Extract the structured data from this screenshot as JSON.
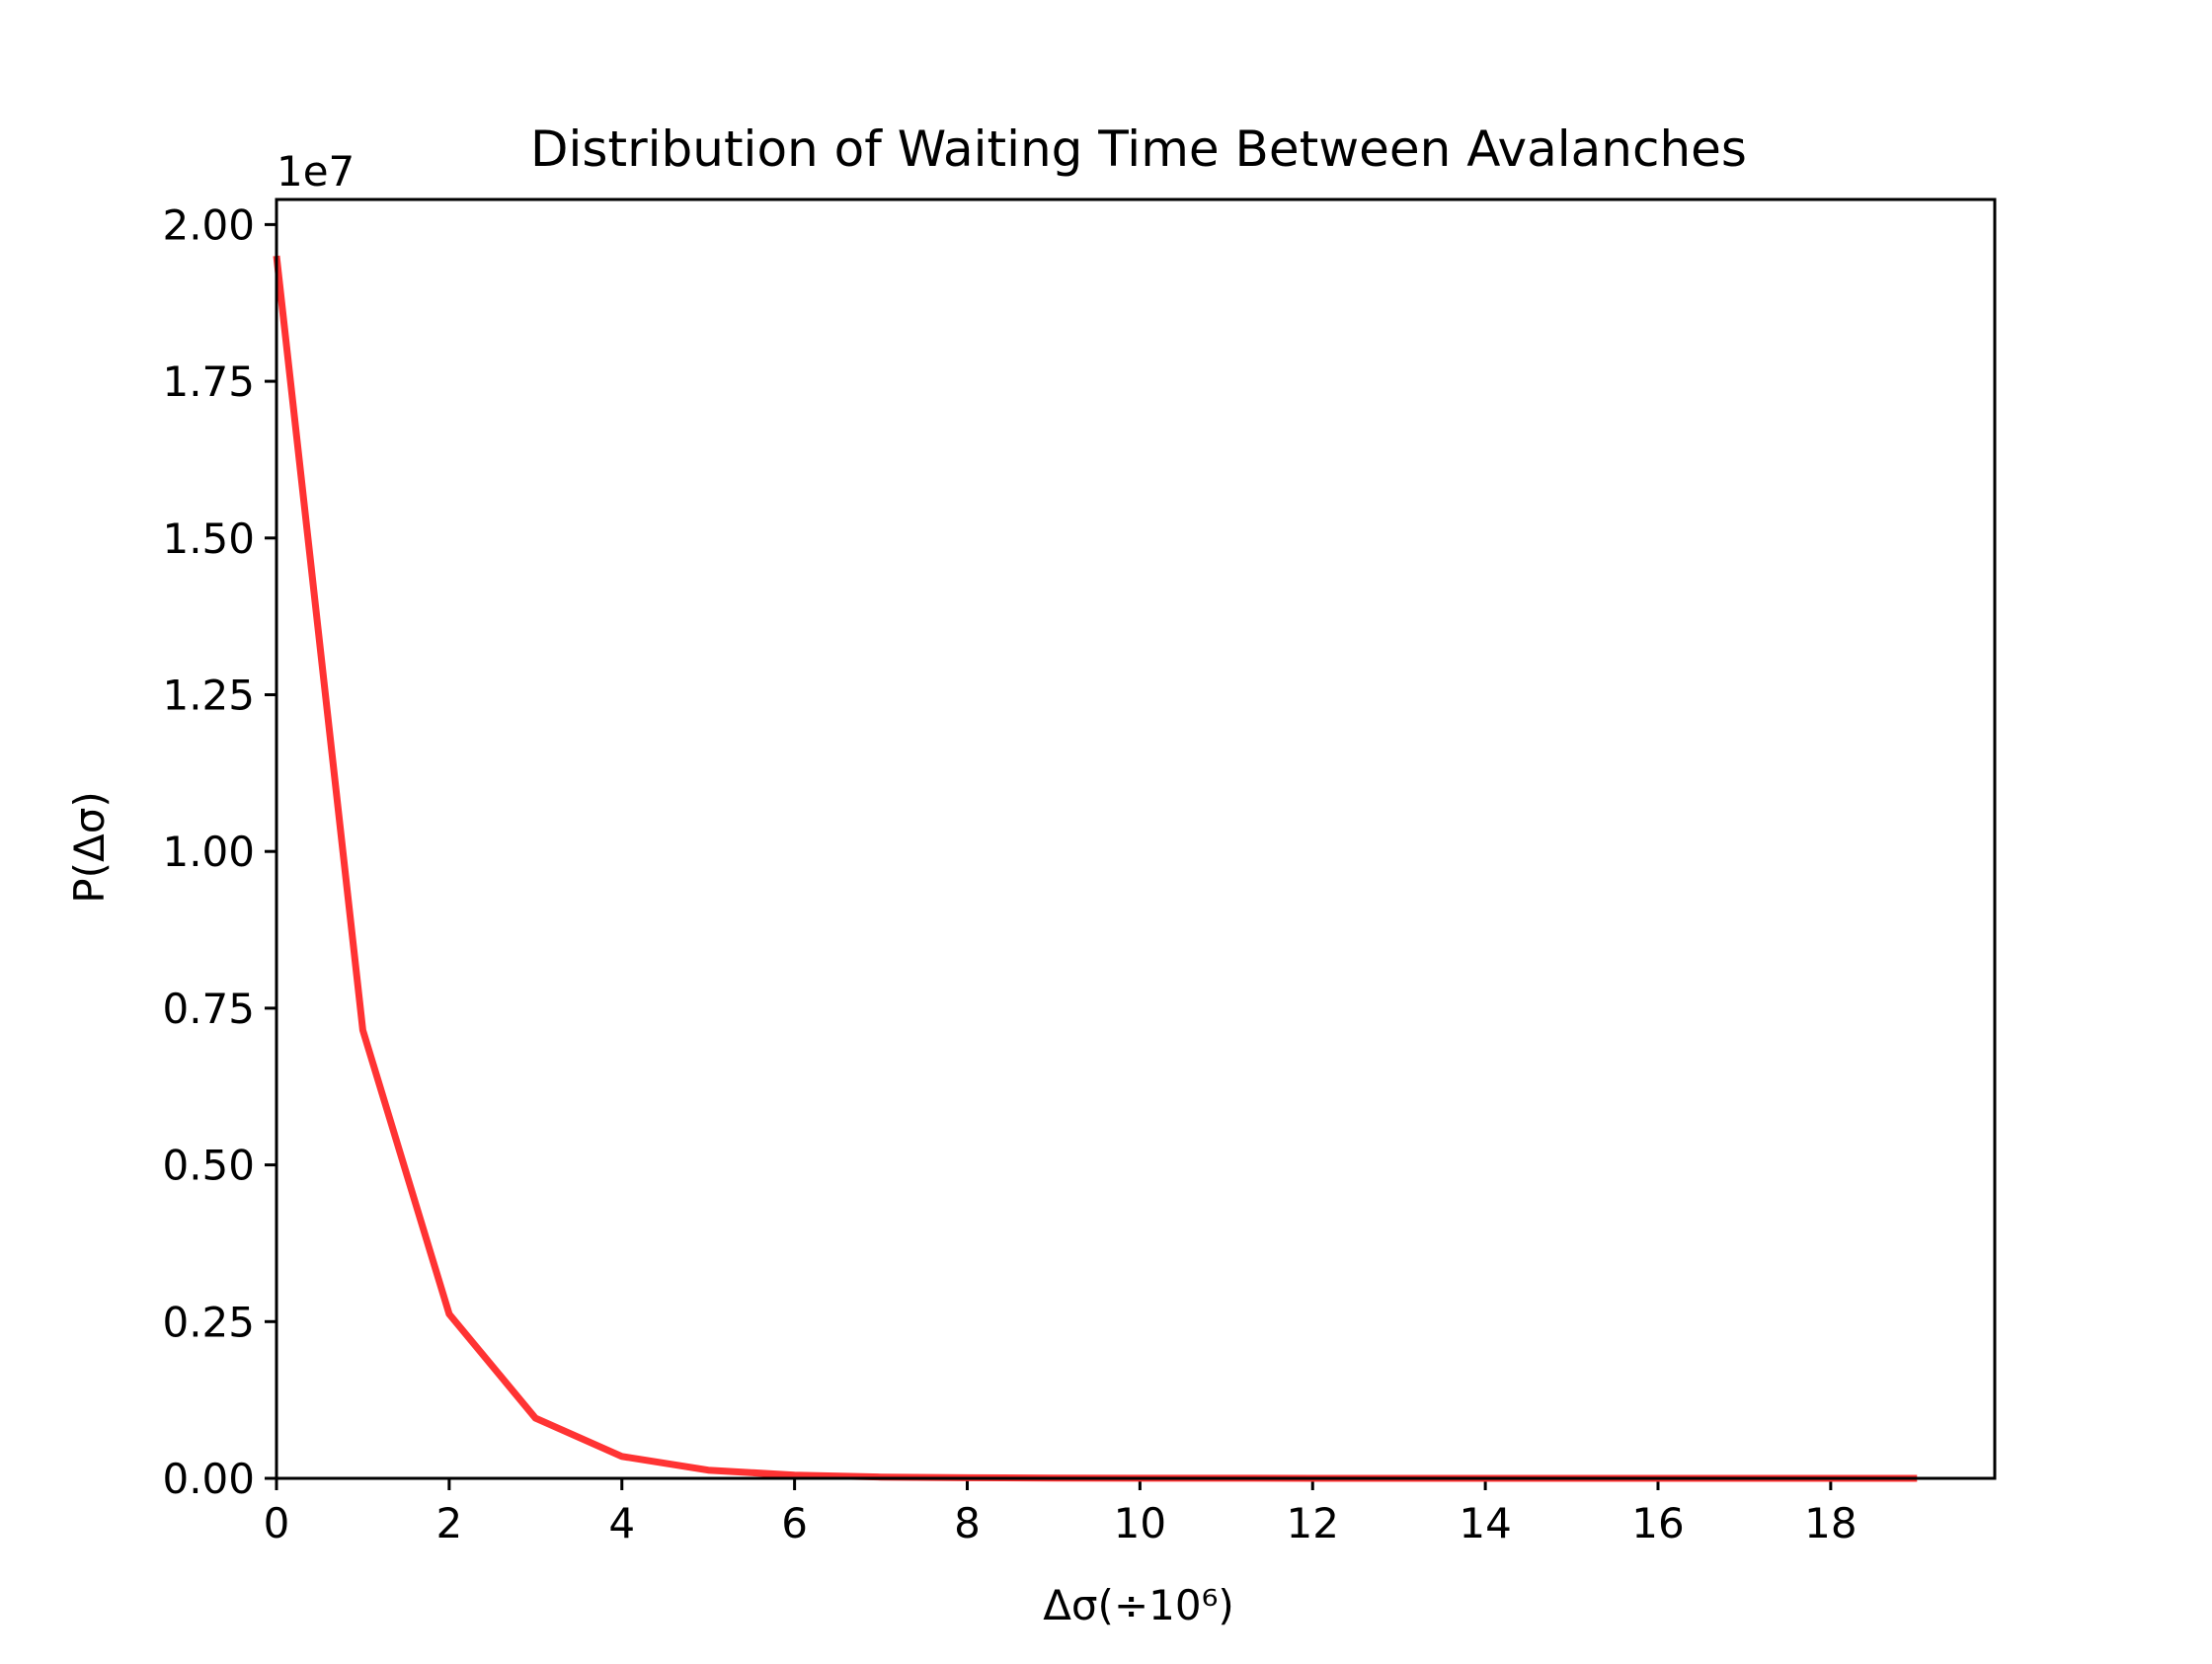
{
  "chart_data": {
    "type": "line",
    "title": "Distribution of Waiting Time Between Avalanches",
    "xlabel": "Δσ(÷10⁶)",
    "ylabel": "P(Δσ)",
    "y_offset_text": "1e7",
    "xlim": [
      0,
      19.9
    ],
    "ylim": [
      0,
      2.04
    ],
    "y_scale_factor": 10000000,
    "x_ticks": [
      0,
      2,
      4,
      6,
      8,
      10,
      12,
      14,
      16,
      18
    ],
    "x_tick_labels": [
      "0",
      "2",
      "4",
      "6",
      "8",
      "10",
      "12",
      "14",
      "16",
      "18"
    ],
    "y_ticks": [
      0,
      0.25,
      0.5,
      0.75,
      1.0,
      1.25,
      1.5,
      1.75,
      2.0
    ],
    "y_tick_labels": [
      "0.00",
      "0.25",
      "0.50",
      "0.75",
      "1.00",
      "1.25",
      "1.50",
      "1.75",
      "2.00"
    ],
    "grid": false,
    "series": [
      {
        "color": "#ff3333",
        "x": [
          0,
          1,
          2,
          3,
          4,
          5,
          6,
          7,
          8,
          9,
          10,
          11,
          12,
          13,
          14,
          15,
          16,
          17,
          18,
          19
        ],
        "y": [
          1.95,
          0.715,
          0.262,
          0.096,
          0.035,
          0.013,
          0.005,
          0.002,
          0.001,
          0.0005,
          0.0002,
          0.0001,
          0.0,
          0.0,
          0.0,
          0.0,
          0.0,
          0.0,
          0.0,
          0.0
        ]
      }
    ]
  }
}
